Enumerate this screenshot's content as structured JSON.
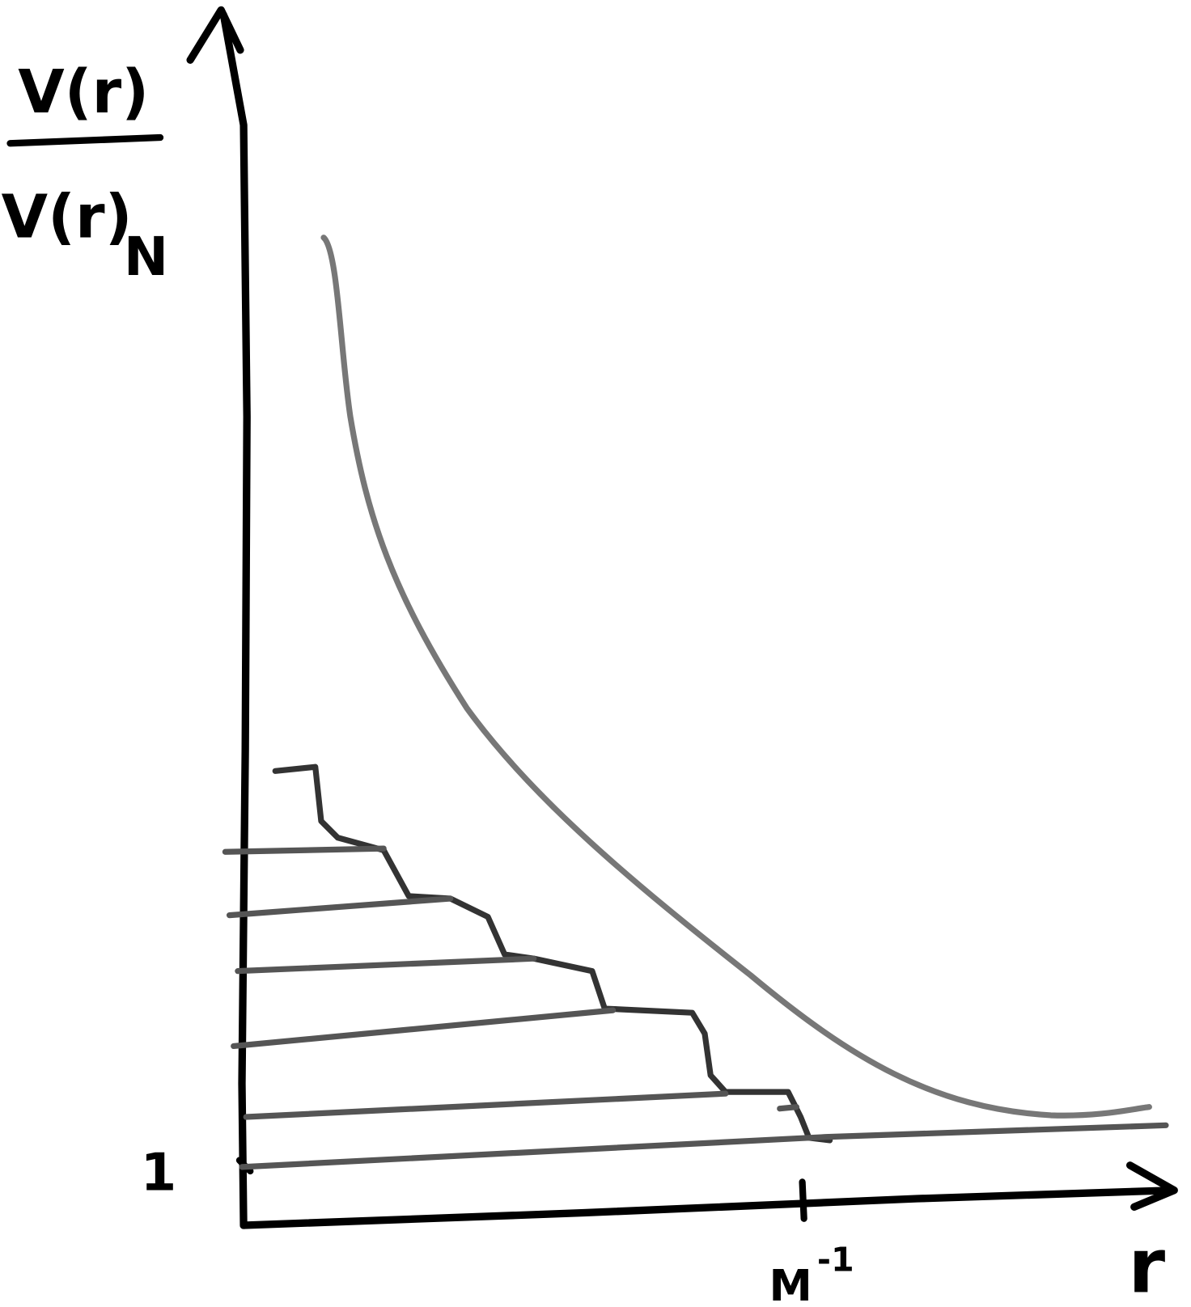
{
  "y_axis_label": {
    "numerator": "V(r)",
    "denominator": "V(r)",
    "subscript": "N"
  },
  "y_tick": "1",
  "x_tick": {
    "base": "M",
    "superscript": "-1"
  },
  "x_axis_label": "r"
}
